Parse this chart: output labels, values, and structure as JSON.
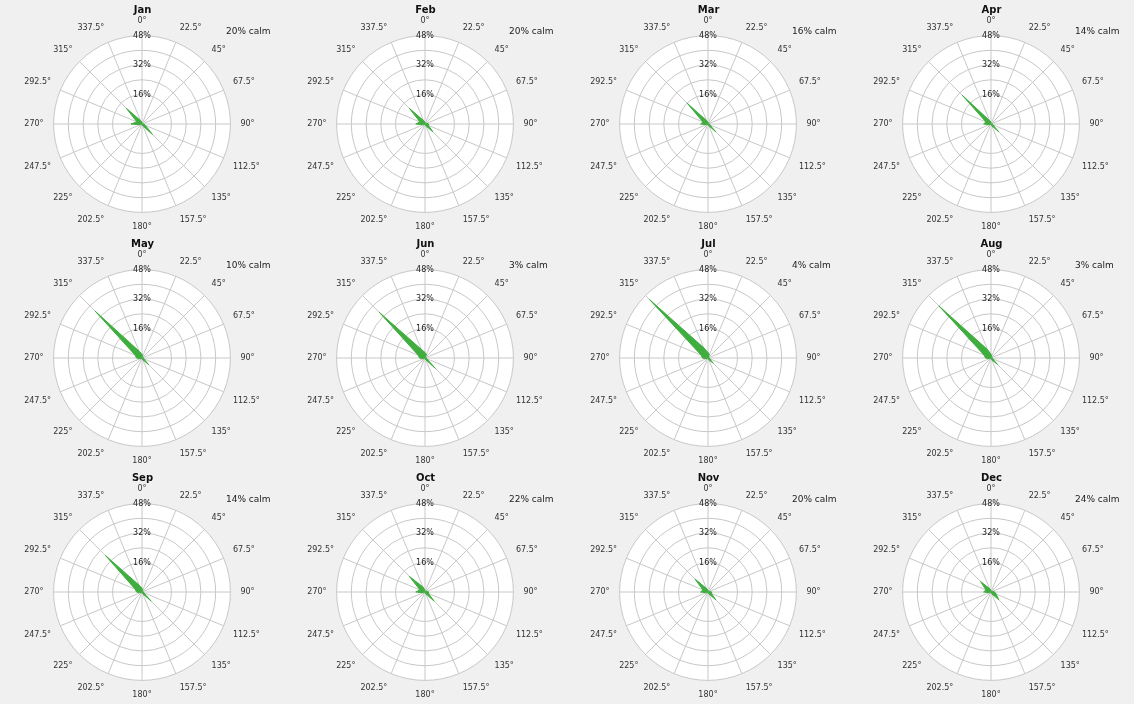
{
  "chart_data": [
    {
      "type": "radar",
      "title": "Jan",
      "categories": [
        "0°",
        "22.5°",
        "45°",
        "67.5°",
        "90°",
        "112.5°",
        "135°",
        "157.5°",
        "180°",
        "202.5°",
        "225°",
        "247.5°",
        "270°",
        "292.5°",
        "315°",
        "337.5°"
      ],
      "series": [
        {
          "color": "#3fae3f",
          "values": [
            1,
            0,
            0,
            0,
            1,
            2,
            8,
            1,
            0,
            0,
            0,
            1,
            6,
            3,
            12,
            2
          ]
        }
      ],
      "ylim": [
        0,
        48
      ],
      "yticks": [
        {
          "value": 16,
          "label": "16%"
        },
        {
          "value": 32,
          "label": "32%"
        },
        {
          "value": 48,
          "label": "48%"
        }
      ],
      "grid": true,
      "annotations": [
        "20% calm"
      ]
    },
    {
      "type": "radar",
      "title": "Feb",
      "categories": [
        "0°",
        "22.5°",
        "45°",
        "67.5°",
        "90°",
        "112.5°",
        "135°",
        "157.5°",
        "180°",
        "202.5°",
        "225°",
        "247.5°",
        "270°",
        "292.5°",
        "315°",
        "337.5°"
      ],
      "series": [
        {
          "color": "#3fae3f",
          "values": [
            1,
            0,
            0,
            1,
            2,
            2,
            6,
            1,
            0,
            0,
            0,
            1,
            5,
            3,
            12,
            2
          ]
        }
      ],
      "ylim": [
        0,
        48
      ],
      "yticks": [
        {
          "value": 16,
          "label": "16%"
        },
        {
          "value": 32,
          "label": "32%"
        },
        {
          "value": 48,
          "label": "48%"
        }
      ],
      "grid": true,
      "annotations": [
        "20% calm"
      ]
    },
    {
      "type": "radar",
      "title": "Mar",
      "categories": [
        "0°",
        "22.5°",
        "45°",
        "67.5°",
        "90°",
        "112.5°",
        "135°",
        "157.5°",
        "180°",
        "202.5°",
        "225°",
        "247.5°",
        "270°",
        "292.5°",
        "315°",
        "337.5°"
      ],
      "series": [
        {
          "color": "#3fae3f",
          "values": [
            1,
            0,
            0,
            0,
            1,
            1,
            6,
            1,
            0,
            0,
            0,
            1,
            4,
            3,
            16,
            2
          ]
        }
      ],
      "ylim": [
        0,
        48
      ],
      "yticks": [
        {
          "value": 16,
          "label": "16%"
        },
        {
          "value": 32,
          "label": "32%"
        },
        {
          "value": 48,
          "label": "48%"
        }
      ],
      "grid": true,
      "annotations": [
        "16% calm"
      ]
    },
    {
      "type": "radar",
      "title": "Apr",
      "categories": [
        "0°",
        "22.5°",
        "45°",
        "67.5°",
        "90°",
        "112.5°",
        "135°",
        "157.5°",
        "180°",
        "202.5°",
        "225°",
        "247.5°",
        "270°",
        "292.5°",
        "315°",
        "337.5°"
      ],
      "series": [
        {
          "color": "#3fae3f",
          "values": [
            1,
            0,
            0,
            0,
            1,
            1,
            6,
            1,
            0,
            0,
            0,
            1,
            4,
            3,
            22,
            2
          ]
        }
      ],
      "ylim": [
        0,
        48
      ],
      "yticks": [
        {
          "value": 16,
          "label": "16%"
        },
        {
          "value": 32,
          "label": "32%"
        },
        {
          "value": 48,
          "label": "48%"
        }
      ],
      "grid": true,
      "annotations": [
        "14% calm"
      ]
    },
    {
      "type": "radar",
      "title": "May",
      "categories": [
        "0°",
        "22.5°",
        "45°",
        "67.5°",
        "90°",
        "112.5°",
        "135°",
        "157.5°",
        "180°",
        "202.5°",
        "225°",
        "247.5°",
        "270°",
        "292.5°",
        "315°",
        "337.5°"
      ],
      "series": [
        {
          "color": "#3fae3f",
          "values": [
            2,
            1,
            0,
            0,
            1,
            1,
            5,
            1,
            0,
            0,
            0,
            1,
            3,
            4,
            36,
            4
          ]
        }
      ],
      "ylim": [
        0,
        48
      ],
      "yticks": [
        {
          "value": 16,
          "label": "16%"
        },
        {
          "value": 32,
          "label": "32%"
        },
        {
          "value": 48,
          "label": "48%"
        }
      ],
      "grid": true,
      "annotations": [
        "10% calm"
      ]
    },
    {
      "type": "radar",
      "title": "Jun",
      "categories": [
        "0°",
        "22.5°",
        "45°",
        "67.5°",
        "90°",
        "112.5°",
        "135°",
        "157.5°",
        "180°",
        "202.5°",
        "225°",
        "247.5°",
        "270°",
        "292.5°",
        "315°",
        "337.5°"
      ],
      "series": [
        {
          "color": "#3fae3f",
          "values": [
            3,
            2,
            0,
            0,
            1,
            1,
            8,
            1,
            0,
            0,
            0,
            1,
            3,
            4,
            35,
            5
          ]
        }
      ],
      "ylim": [
        0,
        48
      ],
      "yticks": [
        {
          "value": 16,
          "label": "16%"
        },
        {
          "value": 32,
          "label": "32%"
        },
        {
          "value": 48,
          "label": "48%"
        }
      ],
      "grid": true,
      "annotations": [
        "3% calm"
      ]
    },
    {
      "type": "radar",
      "title": "Jul",
      "categories": [
        "0°",
        "22.5°",
        "45°",
        "67.5°",
        "90°",
        "112.5°",
        "135°",
        "157.5°",
        "180°",
        "202.5°",
        "225°",
        "247.5°",
        "270°",
        "292.5°",
        "315°",
        "337.5°"
      ],
      "series": [
        {
          "color": "#3fae3f",
          "values": [
            3,
            2,
            0,
            0,
            1,
            1,
            4,
            1,
            0,
            0,
            0,
            1,
            3,
            4,
            45,
            6
          ]
        }
      ],
      "ylim": [
        0,
        48
      ],
      "yticks": [
        {
          "value": 16,
          "label": "16%"
        },
        {
          "value": 32,
          "label": "32%"
        },
        {
          "value": 48,
          "label": "48%"
        }
      ],
      "grid": true,
      "annotations": [
        "4% calm"
      ]
    },
    {
      "type": "radar",
      "title": "Aug",
      "categories": [
        "0°",
        "22.5°",
        "45°",
        "67.5°",
        "90°",
        "112.5°",
        "135°",
        "157.5°",
        "180°",
        "202.5°",
        "225°",
        "247.5°",
        "270°",
        "292.5°",
        "315°",
        "337.5°"
      ],
      "series": [
        {
          "color": "#3fae3f",
          "values": [
            2,
            1,
            0,
            0,
            1,
            1,
            5,
            1,
            0,
            0,
            0,
            1,
            3,
            4,
            40,
            5
          ]
        }
      ],
      "ylim": [
        0,
        48
      ],
      "yticks": [
        {
          "value": 16,
          "label": "16%"
        },
        {
          "value": 32,
          "label": "32%"
        },
        {
          "value": 48,
          "label": "48%"
        }
      ],
      "grid": true,
      "annotations": [
        "3% calm"
      ]
    },
    {
      "type": "radar",
      "title": "Sep",
      "categories": [
        "0°",
        "22.5°",
        "45°",
        "67.5°",
        "90°",
        "112.5°",
        "135°",
        "157.5°",
        "180°",
        "202.5°",
        "225°",
        "247.5°",
        "270°",
        "292.5°",
        "315°",
        "337.5°"
      ],
      "series": [
        {
          "color": "#3fae3f",
          "values": [
            2,
            1,
            0,
            0,
            1,
            1,
            7,
            1,
            0,
            0,
            0,
            1,
            3,
            4,
            28,
            4
          ]
        }
      ],
      "ylim": [
        0,
        48
      ],
      "yticks": [
        {
          "value": 16,
          "label": "16%"
        },
        {
          "value": 32,
          "label": "32%"
        },
        {
          "value": 48,
          "label": "48%"
        }
      ],
      "grid": true,
      "annotations": [
        "14% calm"
      ]
    },
    {
      "type": "radar",
      "title": "Oct",
      "categories": [
        "0°",
        "22.5°",
        "45°",
        "67.5°",
        "90°",
        "112.5°",
        "135°",
        "157.5°",
        "180°",
        "202.5°",
        "225°",
        "247.5°",
        "270°",
        "292.5°",
        "315°",
        "337.5°"
      ],
      "series": [
        {
          "color": "#3fae3f",
          "values": [
            1,
            0,
            0,
            1,
            2,
            2,
            7,
            1,
            0,
            0,
            0,
            1,
            5,
            3,
            12,
            3
          ]
        }
      ],
      "ylim": [
        0,
        48
      ],
      "yticks": [
        {
          "value": 16,
          "label": "16%"
        },
        {
          "value": 32,
          "label": "32%"
        },
        {
          "value": 48,
          "label": "48%"
        }
      ],
      "grid": true,
      "annotations": [
        "22% calm"
      ]
    },
    {
      "type": "radar",
      "title": "Nov",
      "categories": [
        "0°",
        "22.5°",
        "45°",
        "67.5°",
        "90°",
        "112.5°",
        "135°",
        "157.5°",
        "180°",
        "202.5°",
        "225°",
        "247.5°",
        "270°",
        "292.5°",
        "315°",
        "337.5°"
      ],
      "series": [
        {
          "color": "#3fae3f",
          "values": [
            1,
            0,
            0,
            1,
            2,
            2,
            6,
            1,
            0,
            0,
            0,
            1,
            4,
            3,
            10,
            2
          ]
        }
      ],
      "ylim": [
        0,
        48
      ],
      "yticks": [
        {
          "value": 16,
          "label": "16%"
        },
        {
          "value": 32,
          "label": "32%"
        },
        {
          "value": 48,
          "label": "48%"
        }
      ],
      "grid": true,
      "annotations": [
        "20% calm"
      ]
    },
    {
      "type": "radar",
      "title": "Dec",
      "categories": [
        "0°",
        "22.5°",
        "45°",
        "67.5°",
        "90°",
        "112.5°",
        "135°",
        "157.5°",
        "180°",
        "202.5°",
        "225°",
        "247.5°",
        "270°",
        "292.5°",
        "315°",
        "337.5°"
      ],
      "series": [
        {
          "color": "#3fae3f",
          "values": [
            1,
            0,
            0,
            1,
            2,
            3,
            6,
            1,
            0,
            0,
            0,
            1,
            4,
            3,
            8,
            2
          ]
        }
      ],
      "ylim": [
        0,
        48
      ],
      "yticks": [
        {
          "value": 16,
          "label": "16%"
        },
        {
          "value": 32,
          "label": "32%"
        },
        {
          "value": 48,
          "label": "48%"
        }
      ],
      "grid": true,
      "annotations": [
        "24% calm"
      ]
    }
  ]
}
